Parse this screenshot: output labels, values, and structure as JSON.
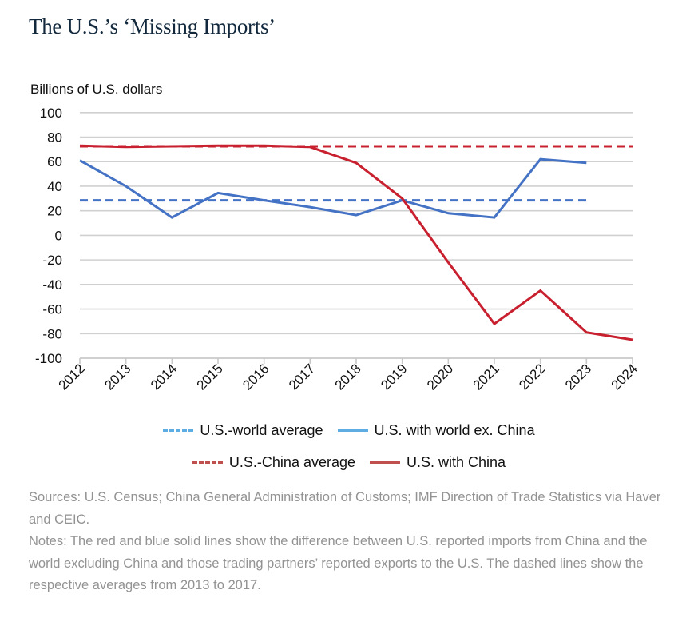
{
  "page": {
    "title": "The U.S.’s ‘Missing Imports’"
  },
  "chart_data": {
    "type": "line",
    "title": "The U.S.’s ‘Missing Imports’",
    "ylabel": "Billions of U.S. dollars",
    "xlabel": "",
    "ylim": [
      -100,
      100
    ],
    "yticks": [
      100,
      80,
      60,
      40,
      20,
      0,
      -20,
      -40,
      -60,
      -80,
      -100
    ],
    "x": [
      "2012",
      "2013",
      "2014",
      "2015",
      "2016",
      "2017",
      "2018",
      "2019",
      "2020",
      "2021",
      "2022",
      "2023",
      "2024"
    ],
    "grid": true,
    "legend_position": "bottom",
    "series": [
      {
        "name": "U.S.-world average",
        "style": "dashed",
        "color": "#4472C4",
        "legend_color": "#5DADE2",
        "x_range": [
          "2012",
          "2023"
        ],
        "value": 28.5
      },
      {
        "name": "U.S. with world ex. China",
        "style": "solid",
        "color": "#4472C4",
        "legend_color": "#5DADE2",
        "values": [
          61,
          40,
          14.5,
          34.5,
          28.5,
          23,
          16.5,
          28.5,
          18,
          14.5,
          62,
          59,
          null
        ]
      },
      {
        "name": "U.S.-China average",
        "style": "dashed",
        "color": "#C8202F",
        "legend_color": "#C0504D",
        "x_range": [
          "2012",
          "2024"
        ],
        "value": 72.5
      },
      {
        "name": "U.S. with China",
        "style": "solid",
        "color": "#C8202F",
        "legend_color": "#C0504D",
        "values": [
          73,
          72,
          72.5,
          73,
          73,
          72,
          59,
          30,
          -22,
          -72,
          -45,
          -79,
          -85
        ]
      }
    ]
  },
  "legend": {
    "row1": [
      {
        "label": "U.S.-world average",
        "style": "dashed",
        "color": "#5DADE2"
      },
      {
        "label": "U.S. with world ex. China",
        "style": "solid",
        "color": "#5DADE2"
      }
    ],
    "row2": [
      {
        "label": "U.S.-China average",
        "style": "dashed",
        "color": "#C0504D"
      },
      {
        "label": "U.S. with China",
        "style": "solid",
        "color": "#C0504D"
      }
    ]
  },
  "notes": {
    "sources": "Sources: U.S. Census; China General Administration of Customs; IMF Direction of Trade Statistics via Haver and CEIC.",
    "notes": "Notes: The red and blue solid lines show the difference between U.S. reported imports from China and the world excluding China and those trading partners’ reported exports to the U.S. The dashed lines show the respective averages from 2013 to 2017."
  }
}
